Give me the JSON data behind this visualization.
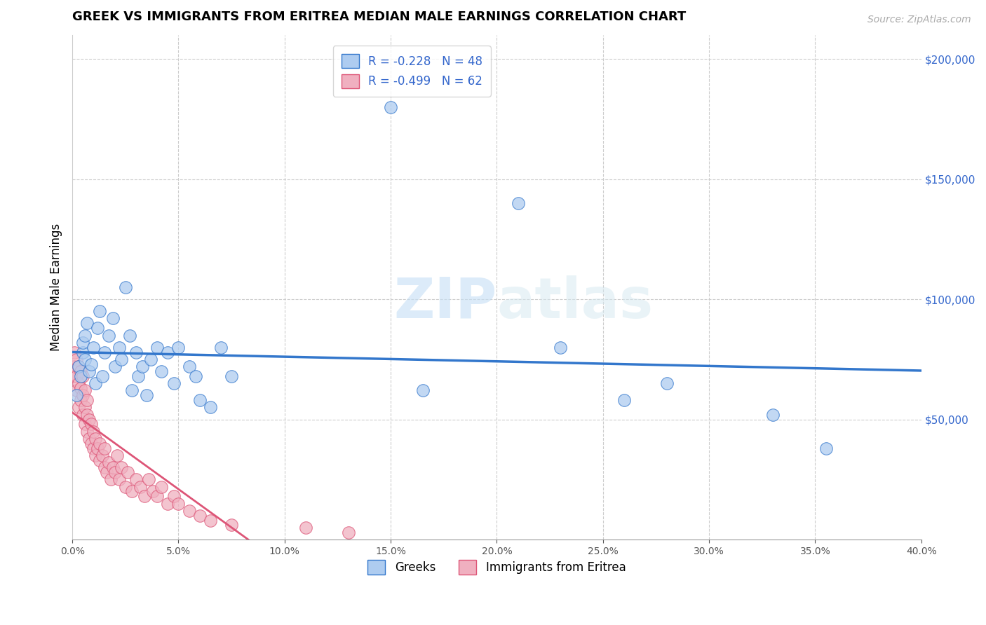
{
  "title": "GREEK VS IMMIGRANTS FROM ERITREA MEDIAN MALE EARNINGS CORRELATION CHART",
  "source": "Source: ZipAtlas.com",
  "ylabel": "Median Male Earnings",
  "right_ytick_labels": [
    "$50,000",
    "$100,000",
    "$150,000",
    "$200,000"
  ],
  "right_ytick_values": [
    50000,
    100000,
    150000,
    200000
  ],
  "xlim": [
    0.0,
    0.4
  ],
  "ylim": [
    0,
    210000
  ],
  "greek_R": -0.228,
  "greek_N": 48,
  "eritrea_R": -0.499,
  "eritrea_N": 62,
  "greek_color": "#aeccf0",
  "eritrea_color": "#f0b0c0",
  "greek_line_color": "#3377cc",
  "eritrea_line_color": "#dd5577",
  "legend_text_color": "#3366cc",
  "watermark_zip": "ZIP",
  "watermark_atlas": "atlas",
  "greek_x": [
    0.002,
    0.003,
    0.004,
    0.005,
    0.005,
    0.006,
    0.006,
    0.007,
    0.008,
    0.009,
    0.01,
    0.011,
    0.012,
    0.013,
    0.014,
    0.015,
    0.017,
    0.019,
    0.02,
    0.022,
    0.023,
    0.025,
    0.027,
    0.028,
    0.03,
    0.031,
    0.033,
    0.035,
    0.037,
    0.04,
    0.042,
    0.045,
    0.048,
    0.05,
    0.055,
    0.058,
    0.06,
    0.065,
    0.07,
    0.075,
    0.15,
    0.165,
    0.21,
    0.23,
    0.26,
    0.28,
    0.33,
    0.355
  ],
  "greek_y": [
    60000,
    72000,
    68000,
    78000,
    82000,
    75000,
    85000,
    90000,
    70000,
    73000,
    80000,
    65000,
    88000,
    95000,
    68000,
    78000,
    85000,
    92000,
    72000,
    80000,
    75000,
    105000,
    85000,
    62000,
    78000,
    68000,
    72000,
    60000,
    75000,
    80000,
    70000,
    78000,
    65000,
    80000,
    72000,
    68000,
    58000,
    55000,
    80000,
    68000,
    180000,
    62000,
    140000,
    80000,
    58000,
    65000,
    52000,
    38000
  ],
  "eritrea_x": [
    0.001,
    0.001,
    0.001,
    0.002,
    0.002,
    0.002,
    0.003,
    0.003,
    0.003,
    0.004,
    0.004,
    0.004,
    0.005,
    0.005,
    0.005,
    0.006,
    0.006,
    0.006,
    0.007,
    0.007,
    0.007,
    0.008,
    0.008,
    0.009,
    0.009,
    0.01,
    0.01,
    0.011,
    0.011,
    0.012,
    0.013,
    0.013,
    0.014,
    0.015,
    0.015,
    0.016,
    0.017,
    0.018,
    0.019,
    0.02,
    0.021,
    0.022,
    0.023,
    0.025,
    0.026,
    0.028,
    0.03,
    0.032,
    0.034,
    0.036,
    0.038,
    0.04,
    0.042,
    0.045,
    0.048,
    0.05,
    0.055,
    0.06,
    0.065,
    0.075,
    0.11,
    0.13
  ],
  "eritrea_y": [
    68000,
    72000,
    78000,
    62000,
    68000,
    75000,
    55000,
    65000,
    72000,
    58000,
    63000,
    70000,
    52000,
    60000,
    68000,
    48000,
    55000,
    62000,
    45000,
    52000,
    58000,
    42000,
    50000,
    40000,
    48000,
    38000,
    45000,
    35000,
    42000,
    38000,
    33000,
    40000,
    35000,
    30000,
    38000,
    28000,
    32000,
    25000,
    30000,
    28000,
    35000,
    25000,
    30000,
    22000,
    28000,
    20000,
    25000,
    22000,
    18000,
    25000,
    20000,
    18000,
    22000,
    15000,
    18000,
    15000,
    12000,
    10000,
    8000,
    6000,
    5000,
    3000
  ]
}
